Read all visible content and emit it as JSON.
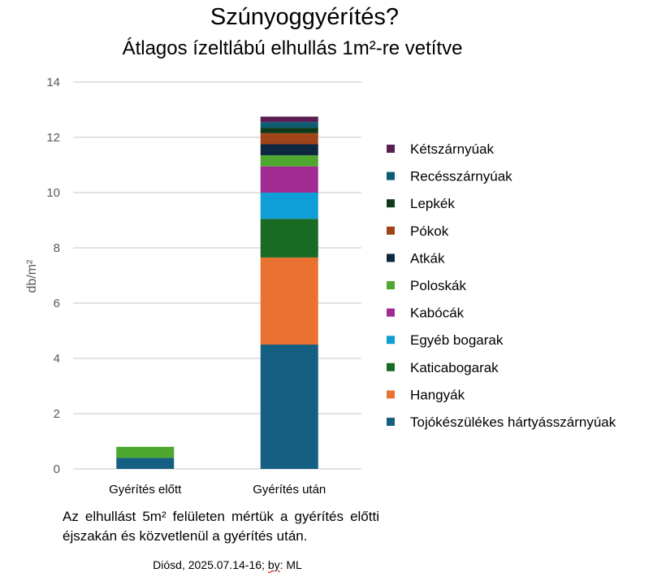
{
  "chart_data": {
    "type": "bar",
    "stacked": true,
    "title": "Szúnyoggyérítés?",
    "subtitle": "Átlagos ízeltlábú elhullás 1m²-re vetítve",
    "ylabel": "db/m²",
    "xlabel": "",
    "ylim": [
      0,
      14
    ],
    "yticks": [
      0,
      2,
      4,
      6,
      8,
      10,
      12,
      14
    ],
    "grid": true,
    "legend_position": "right",
    "categories": [
      "Gyérítés előtt",
      "Gyérítés után"
    ],
    "series": [
      {
        "name": "Tojókészülékes hártyásszárnyúak",
        "color": "#156082",
        "values": [
          0.4,
          4.5
        ]
      },
      {
        "name": "Hangyák",
        "color": "#E97132",
        "values": [
          0,
          3.15
        ]
      },
      {
        "name": "Katicabogarak",
        "color": "#196B24",
        "values": [
          0,
          1.4
        ]
      },
      {
        "name": "Egyéb bogarak",
        "color": "#0F9ED5",
        "values": [
          0,
          0.95
        ]
      },
      {
        "name": "Kabócák",
        "color": "#A02B93",
        "values": [
          0,
          0.95
        ]
      },
      {
        "name": "Poloskák",
        "color": "#4EA72E",
        "values": [
          0.4,
          0.4
        ]
      },
      {
        "name": "Atkák",
        "color": "#0E2841",
        "values": [
          0,
          0.4
        ]
      },
      {
        "name": "Pókok",
        "color": "#A0451A",
        "values": [
          0,
          0.4
        ]
      },
      {
        "name": "Lepkék",
        "color": "#0F3A1A",
        "values": [
          0,
          0.2
        ]
      },
      {
        "name": "Recésszárnyúak",
        "color": "#0C5C74",
        "values": [
          0,
          0.2
        ]
      },
      {
        "name": "Kétszárnyúak",
        "color": "#5A1E52",
        "values": [
          0,
          0.2
        ]
      }
    ]
  },
  "footnote": "Az elhullást 5m² felületen mértük a gyérítés előtti éjszakán és közvetlenül a gyérítés után.",
  "credit_prefix": "Diósd, 2025.07.14-16; ",
  "credit_by": "by",
  "credit_suffix": ": ML"
}
